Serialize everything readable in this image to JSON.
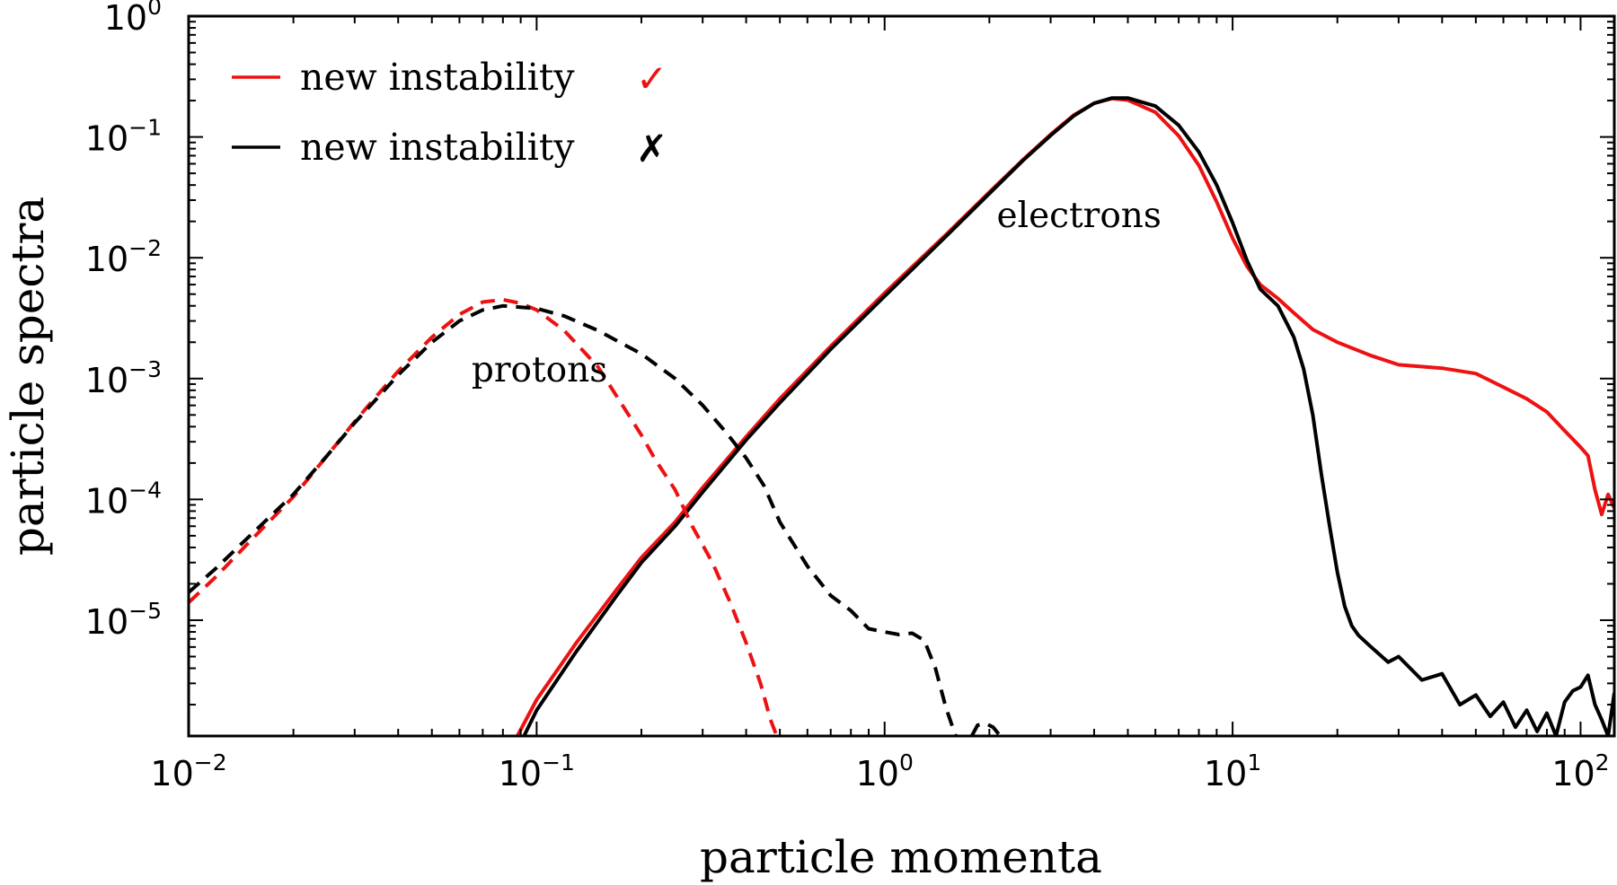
{
  "chart_data": {
    "type": "line",
    "xlabel": "particle momenta",
    "ylabel": "particle spectra",
    "x_scale": "log",
    "y_scale": "log",
    "xlim": [
      0.01,
      125
    ],
    "ylim": [
      1.1e-06,
      1
    ],
    "x_ticks": [
      {
        "value": 0.01,
        "base": "10",
        "exp": "−2"
      },
      {
        "value": 0.1,
        "base": "10",
        "exp": "−1"
      },
      {
        "value": 1,
        "base": "10",
        "exp": "0"
      },
      {
        "value": 10,
        "base": "10",
        "exp": "1"
      },
      {
        "value": 100,
        "base": "10",
        "exp": "2"
      }
    ],
    "y_ticks": [
      {
        "value": 1,
        "base": "10",
        "exp": "0"
      },
      {
        "value": 0.1,
        "base": "10",
        "exp": "−1"
      },
      {
        "value": 0.01,
        "base": "10",
        "exp": "−2"
      },
      {
        "value": 0.001,
        "base": "10",
        "exp": "−3"
      },
      {
        "value": 0.0001,
        "base": "10",
        "exp": "−4"
      },
      {
        "value": 1e-05,
        "base": "10",
        "exp": "−5"
      }
    ],
    "grid": false,
    "legend_position": "top-left",
    "legend": [
      {
        "label": "new instability",
        "mark": "✓",
        "color": "#ee1111"
      },
      {
        "label": "new instability",
        "mark": "✗",
        "color": "#000000"
      }
    ],
    "annotations": [
      {
        "text": "electrons",
        "x": 2.1,
        "y": 0.018
      },
      {
        "text": "protons",
        "x": 0.065,
        "y": 0.00095
      }
    ],
    "series": [
      {
        "group": "electrons",
        "legend_index": 0,
        "color": "#ee1111",
        "dash": "solid",
        "points": [
          [
            0.088,
            1.1e-06
          ],
          [
            0.1,
            2.2e-06
          ],
          [
            0.13,
            6.5e-06
          ],
          [
            0.17,
            1.8e-05
          ],
          [
            0.2,
            3.3e-05
          ],
          [
            0.25,
            6.5e-05
          ],
          [
            0.3,
            0.000125
          ],
          [
            0.4,
            0.00033
          ],
          [
            0.5,
            0.00068
          ],
          [
            0.7,
            0.00185
          ],
          [
            1.0,
            0.0051
          ],
          [
            1.5,
            0.0155
          ],
          [
            2.0,
            0.035
          ],
          [
            2.5,
            0.065
          ],
          [
            3.0,
            0.105
          ],
          [
            3.5,
            0.152
          ],
          [
            4.0,
            0.19
          ],
          [
            4.5,
            0.208
          ],
          [
            5.0,
            0.202
          ],
          [
            6.0,
            0.16
          ],
          [
            7.0,
            0.102
          ],
          [
            8.0,
            0.058
          ],
          [
            9.0,
            0.029
          ],
          [
            10.0,
            0.0145
          ],
          [
            11.0,
            0.0085
          ],
          [
            12.0,
            0.006
          ],
          [
            13.5,
            0.0046
          ],
          [
            15.0,
            0.0035
          ],
          [
            17.0,
            0.00255
          ],
          [
            20.0,
            0.002
          ],
          [
            25.0,
            0.00155
          ],
          [
            30.0,
            0.0013
          ],
          [
            40.0,
            0.00122
          ],
          [
            50.0,
            0.0011
          ],
          [
            60.0,
            0.00085
          ],
          [
            70.0,
            0.00068
          ],
          [
            80.0,
            0.00053
          ],
          [
            90.0,
            0.00037
          ],
          [
            100.0,
            0.00027
          ],
          [
            105.0,
            0.00023
          ],
          [
            110.0,
            0.00012
          ],
          [
            115.0,
            7.5e-05
          ],
          [
            120.0,
            0.00011
          ],
          [
            125.0,
            8.5e-05
          ]
        ]
      },
      {
        "group": "electrons",
        "legend_index": 1,
        "color": "#000000",
        "dash": "solid",
        "points": [
          [
            0.092,
            1.1e-06
          ],
          [
            0.1,
            1.8e-06
          ],
          [
            0.13,
            5.5e-06
          ],
          [
            0.17,
            1.6e-05
          ],
          [
            0.2,
            3e-05
          ],
          [
            0.25,
            6e-05
          ],
          [
            0.3,
            0.000115
          ],
          [
            0.4,
            0.00031
          ],
          [
            0.5,
            0.00063
          ],
          [
            0.7,
            0.00175
          ],
          [
            1.0,
            0.0048
          ],
          [
            1.5,
            0.015
          ],
          [
            2.0,
            0.034
          ],
          [
            2.5,
            0.064
          ],
          [
            3.0,
            0.103
          ],
          [
            3.5,
            0.15
          ],
          [
            4.0,
            0.19
          ],
          [
            4.5,
            0.21
          ],
          [
            5.0,
            0.21
          ],
          [
            6.0,
            0.18
          ],
          [
            7.0,
            0.125
          ],
          [
            8.0,
            0.075
          ],
          [
            9.0,
            0.04
          ],
          [
            10.0,
            0.0195
          ],
          [
            11.0,
            0.0095
          ],
          [
            12.0,
            0.0055
          ],
          [
            13.5,
            0.004
          ],
          [
            15.0,
            0.0022
          ],
          [
            16.0,
            0.0012
          ],
          [
            17.0,
            0.0005
          ],
          [
            18.0,
            0.00016
          ],
          [
            19.0,
            6e-05
          ],
          [
            20.0,
            2.5e-05
          ],
          [
            21.0,
            1.3e-05
          ],
          [
            22.0,
            9e-06
          ],
          [
            23.0,
            7.5e-06
          ],
          [
            25.0,
            6e-06
          ],
          [
            28.0,
            4.5e-06
          ],
          [
            30.0,
            5e-06
          ],
          [
            35.0,
            3.2e-06
          ],
          [
            40.0,
            3.6e-06
          ],
          [
            45.0,
            2e-06
          ],
          [
            50.0,
            2.4e-06
          ],
          [
            55.0,
            1.6e-06
          ],
          [
            60.0,
            2.1e-06
          ],
          [
            65.0,
            1.3e-06
          ],
          [
            70.0,
            1.8e-06
          ],
          [
            75.0,
            1.2e-06
          ],
          [
            80.0,
            1.7e-06
          ],
          [
            85.0,
            1.1e-06
          ],
          [
            90.0,
            2.1e-06
          ],
          [
            95.0,
            2.6e-06
          ],
          [
            100.0,
            2.8e-06
          ],
          [
            105.0,
            3.5e-06
          ],
          [
            110.0,
            2e-06
          ],
          [
            115.0,
            1.5e-06
          ],
          [
            120.0,
            1.1e-06
          ],
          [
            125.0,
            2.5e-06
          ]
        ]
      },
      {
        "group": "protons",
        "legend_index": 0,
        "color": "#ee1111",
        "dash": "dashed",
        "points": [
          [
            0.01,
            1.4e-05
          ],
          [
            0.012,
            2.3e-05
          ],
          [
            0.015,
            4.5e-05
          ],
          [
            0.02,
            0.000105
          ],
          [
            0.025,
            0.00023
          ],
          [
            0.03,
            0.00044
          ],
          [
            0.035,
            0.00074
          ],
          [
            0.04,
            0.00115
          ],
          [
            0.05,
            0.0022
          ],
          [
            0.06,
            0.0034
          ],
          [
            0.07,
            0.0043
          ],
          [
            0.08,
            0.0045
          ],
          [
            0.09,
            0.0042
          ],
          [
            0.1,
            0.0037
          ],
          [
            0.12,
            0.0025
          ],
          [
            0.15,
            0.00125
          ],
          [
            0.18,
            0.00055
          ],
          [
            0.2,
            0.00034
          ],
          [
            0.22,
            0.00021
          ],
          [
            0.25,
            0.00012
          ],
          [
            0.28,
            6e-05
          ],
          [
            0.32,
            3e-05
          ],
          [
            0.36,
            1.4e-05
          ],
          [
            0.4,
            6.5e-06
          ],
          [
            0.44,
            3e-06
          ],
          [
            0.47,
            1.5e-06
          ],
          [
            0.49,
            1.1e-06
          ]
        ]
      },
      {
        "group": "protons",
        "legend_index": 1,
        "color": "#000000",
        "dash": "dashed",
        "points": [
          [
            0.01,
            1.7e-05
          ],
          [
            0.012,
            2.7e-05
          ],
          [
            0.015,
            5e-05
          ],
          [
            0.02,
            0.00011
          ],
          [
            0.025,
            0.00023
          ],
          [
            0.03,
            0.00043
          ],
          [
            0.035,
            0.0007
          ],
          [
            0.04,
            0.00107
          ],
          [
            0.05,
            0.002
          ],
          [
            0.06,
            0.003
          ],
          [
            0.07,
            0.0037
          ],
          [
            0.08,
            0.004
          ],
          [
            0.1,
            0.0038
          ],
          [
            0.12,
            0.0033
          ],
          [
            0.15,
            0.0025
          ],
          [
            0.2,
            0.0016
          ],
          [
            0.25,
            0.001
          ],
          [
            0.3,
            0.0006
          ],
          [
            0.35,
            0.00036
          ],
          [
            0.4,
            0.00022
          ],
          [
            0.45,
            0.00013
          ],
          [
            0.5,
            6.5e-05
          ],
          [
            0.6,
            2.8e-05
          ],
          [
            0.7,
            1.6e-05
          ],
          [
            0.8,
            1.2e-05
          ],
          [
            0.9,
            8.5e-06
          ],
          [
            1.0,
            8e-06
          ],
          [
            1.1,
            7.6e-06
          ],
          [
            1.2,
            7.8e-06
          ],
          [
            1.3,
            6.8e-06
          ],
          [
            1.4,
            4e-06
          ],
          [
            1.5,
            1.9e-06
          ],
          [
            1.6,
            1.1e-06
          ]
        ]
      },
      {
        "group": "protons",
        "legend_index": 1,
        "color": "#000000",
        "dash": "dashed",
        "points": [
          [
            1.78,
            1.1e-06
          ],
          [
            1.85,
            1.35e-06
          ],
          [
            1.95,
            1.4e-06
          ],
          [
            2.05,
            1.3e-06
          ],
          [
            2.15,
            1.1e-06
          ]
        ]
      }
    ]
  }
}
